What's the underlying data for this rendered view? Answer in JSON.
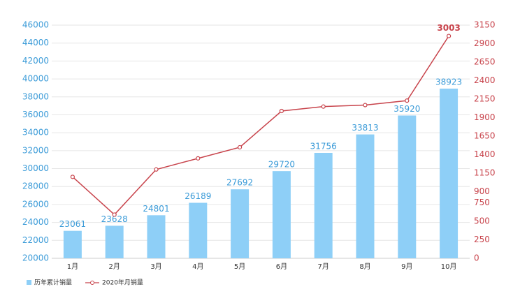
{
  "chart_data": {
    "type": "bar-line",
    "categories": [
      "1月",
      "2月",
      "3月",
      "4月",
      "5月",
      "6月",
      "7月",
      "8月",
      "9月",
      "10月"
    ],
    "series": [
      {
        "name": "历年累计销量",
        "type": "bar",
        "color": "#8ecff7",
        "axis": "y",
        "values": [
          23061,
          23628,
          24801,
          26189,
          27692,
          29720,
          31756,
          33813,
          35920,
          38923
        ]
      },
      {
        "name": "2020年月销量",
        "type": "line",
        "color": "#c8444c",
        "axis": "y2",
        "values": [
          1100,
          590,
          1200,
          1350,
          1500,
          1990,
          2050,
          2070,
          2130,
          3003
        ],
        "value_labels": [
          null,
          null,
          null,
          null,
          null,
          null,
          null,
          null,
          null,
          "3003"
        ]
      }
    ],
    "ylim": [
      20000,
      46000
    ],
    "yticks": [
      20000,
      22000,
      24000,
      26000,
      28000,
      30000,
      32000,
      34000,
      36000,
      38000,
      40000,
      42000,
      44000,
      46000
    ],
    "y2lim": [
      0,
      3150
    ],
    "y2ticks": [
      0,
      250,
      500,
      750,
      900,
      1150,
      1400,
      1650,
      1900,
      2150,
      2400,
      2650,
      2900,
      3150
    ],
    "grid": true,
    "legend": "bottom-left",
    "y_label_color": "#3b9bd8",
    "y2_label_color": "#c8444c"
  }
}
